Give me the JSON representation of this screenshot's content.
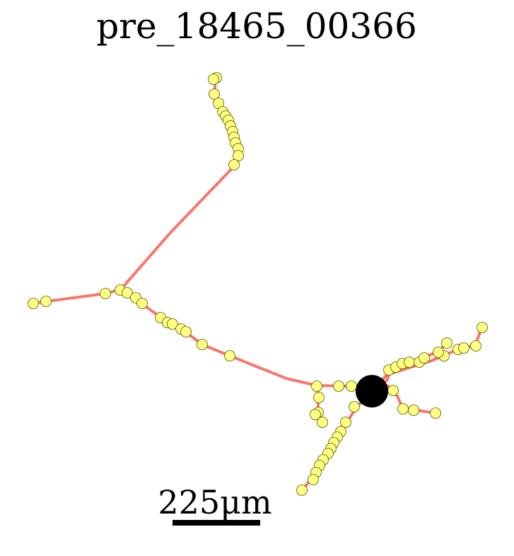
{
  "title": "pre_18465_00366",
  "scale_bar": {
    "label": "225μm"
  },
  "colors": {
    "branch": "#f8766d",
    "synapse_fill": "#ffff80",
    "synapse_stroke": "#555500",
    "soma": "#000000",
    "background": "#ffffff"
  }
}
